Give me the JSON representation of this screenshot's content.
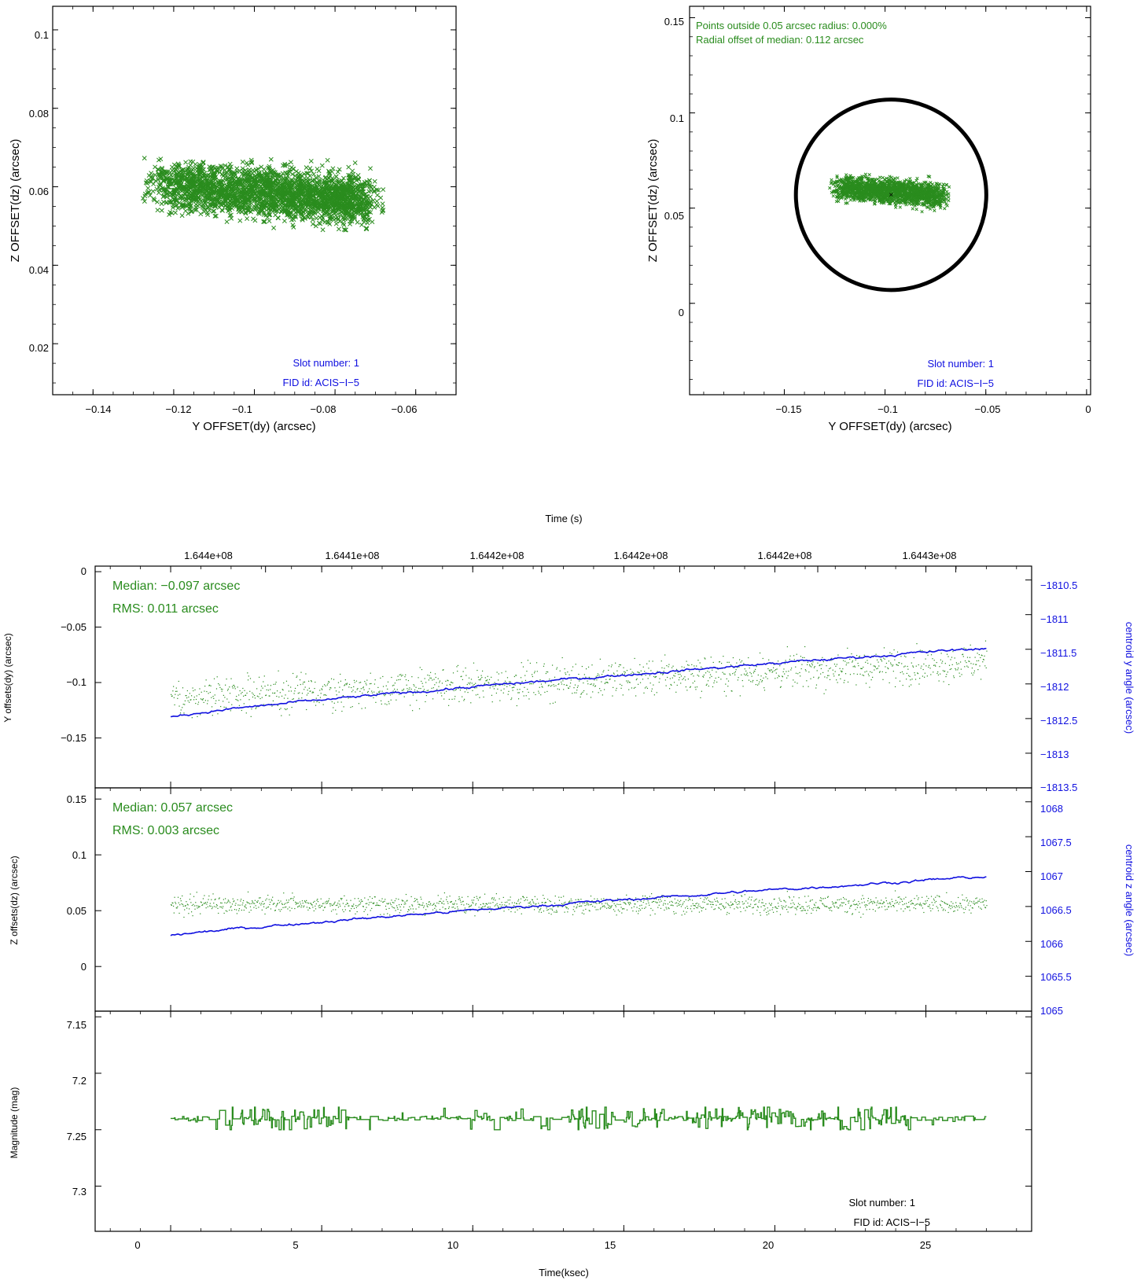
{
  "colors": {
    "green": "#2a8c1e",
    "blue": "#1010e0",
    "black": "#000000"
  },
  "chart_data": [
    {
      "id": "scatter_left",
      "type": "scatter",
      "xlabel": "Y OFFSET(dy) (arcsec)",
      "ylabel": "Z OFFSET(dz) (arcsec)",
      "xlim": [
        -0.15,
        -0.05
      ],
      "ylim": [
        0.007,
        0.106
      ],
      "xticks": [
        -0.14,
        -0.12,
        -0.1,
        -0.08,
        -0.06
      ],
      "xtick_labels": [
        "−0.14",
        "−0.12",
        "−0.1",
        "−0.08",
        "−0.06"
      ],
      "yticks": [
        0.02,
        0.04,
        0.06,
        0.08,
        0.1
      ],
      "ytick_labels": [
        "0.02",
        "0.04",
        "0.06",
        "0.08",
        "0.1"
      ],
      "cloud": {
        "center": [
          -0.098,
          0.0575
        ],
        "x_range": [
          -0.126,
          -0.069
        ],
        "y_range": [
          0.0455,
          0.068
        ],
        "marker": "x"
      },
      "annotations": [
        "Slot number: 1",
        "FID id: ACIS−I−5"
      ]
    },
    {
      "id": "scatter_right",
      "type": "scatter",
      "xlabel": "Y OFFSET(dy) (arcsec)",
      "ylabel": "Z OFFSET(dz) (arcsec)",
      "xlim": [
        -0.197,
        0.002
      ],
      "ylim": [
        -0.048,
        0.156
      ],
      "xticks": [
        -0.15,
        -0.1,
        -0.05,
        0
      ],
      "xtick_labels": [
        "−0.15",
        "−0.1",
        "−0.05",
        "0"
      ],
      "yticks": [
        0,
        0.05,
        0.1,
        0.15
      ],
      "ytick_labels": [
        "0",
        "0.05",
        "0.1",
        "0.15"
      ],
      "cloud": {
        "center": [
          -0.098,
          0.0575
        ],
        "x_range": [
          -0.126,
          -0.069
        ],
        "y_range": [
          0.0455,
          0.068
        ],
        "marker": "x"
      },
      "circle": {
        "center": [
          -0.097,
          0.057
        ],
        "radius": 0.05
      },
      "median_point": [
        -0.097,
        0.057
      ],
      "annotations": [
        "Points outside 0.05 arcsec radius: 0.000%",
        "Radial offset of median: 0.112 arcsec"
      ],
      "footer_annotations": [
        "Slot number: 1",
        "FID id: ACIS−I−5"
      ]
    },
    {
      "id": "timeseries_y",
      "type": "line",
      "top_axis_title": "Time (s)",
      "top_tick_labels": [
        "1.644e+08",
        "1.6441e+08",
        "1.6442e+08",
        "1.6442e+08",
        "1.6442e+08",
        "1.6443e+08"
      ],
      "top_tick_ksec": [
        3.14,
        7.71,
        12.28,
        16.85,
        21.42,
        25.99
      ],
      "ylabel": "Y offsets(dy) (arcsec)",
      "ylim": [
        -0.195,
        0.005
      ],
      "yticks": [
        0,
        -0.05,
        -0.1,
        -0.15
      ],
      "ytick_labels": [
        "0",
        "−0.05",
        "−0.1",
        "−0.15"
      ],
      "y2label": "centroid y angle (arcsec)",
      "y2lim": [
        -1813.5,
        -1810.3
      ],
      "y2ticks": [
        -1810.5,
        -1811,
        -1811.5,
        -1812,
        -1812.5,
        -1813,
        -1813.5
      ],
      "y2tick_labels": [
        "−1810.5",
        "−1811",
        "−1811.5",
        "−1812",
        "−1812.5",
        "−1813",
        "−1813.5"
      ],
      "series": [
        {
          "axis": "left",
          "style": "dots",
          "start": -0.114,
          "end": -0.081,
          "noise": 0.008
        },
        {
          "axis": "right",
          "style": "line",
          "start": -1812.47,
          "end": -1811.48,
          "noise": 0.01
        }
      ],
      "annotations": [
        "Median: −0.097 arcsec",
        "RMS: 0.011 arcsec"
      ]
    },
    {
      "id": "timeseries_z",
      "type": "line",
      "ylabel": "Z offsets(dz) (arcsec)",
      "ylim": [
        -0.04,
        0.16
      ],
      "yticks": [
        0,
        0.05,
        0.1,
        0.15
      ],
      "ytick_labels": [
        "0",
        "0.05",
        "0.1",
        "0.15"
      ],
      "y2label": "centroid z angle (arcsec)",
      "y2lim": [
        1065,
        1068.2
      ],
      "y2ticks": [
        1065,
        1065.5,
        1066,
        1066.5,
        1067,
        1067.5,
        1068
      ],
      "y2tick_labels": [
        "1065",
        "1065.5",
        "1066",
        "1066.5",
        "1067",
        "1067.5",
        "1068"
      ],
      "series": [
        {
          "axis": "left",
          "style": "dots",
          "start": 0.056,
          "end": 0.056,
          "noise": 0.004
        },
        {
          "axis": "right",
          "style": "line",
          "start": 1066.08,
          "end": 1066.93,
          "noise": 0.01
        }
      ],
      "annotations": [
        "Median: 0.057 arcsec",
        "RMS: 0.003 arcsec"
      ]
    },
    {
      "id": "timeseries_mag",
      "type": "line",
      "xlabel": "Time(ksec)",
      "xlim": [
        -2.5,
        28.5
      ],
      "xticks": [
        0,
        5,
        10,
        15,
        20,
        25
      ],
      "xtick_labels": [
        "0",
        "5",
        "10",
        "15",
        "20",
        "25"
      ],
      "ylabel": "Magnitude (mag)",
      "ylim": [
        7.145,
        7.34
      ],
      "yticks": [
        7.15,
        7.2,
        7.25,
        7.3
      ],
      "ytick_labels": [
        "7.15",
        "7.2",
        "7.25",
        "7.3"
      ],
      "series": [
        {
          "axis": "left",
          "style": "step",
          "baseline": 7.24,
          "min": 7.23,
          "max": 7.25
        }
      ],
      "annotations": [
        "Slot number: 1",
        "FID id: ACIS−I−5"
      ]
    }
  ]
}
